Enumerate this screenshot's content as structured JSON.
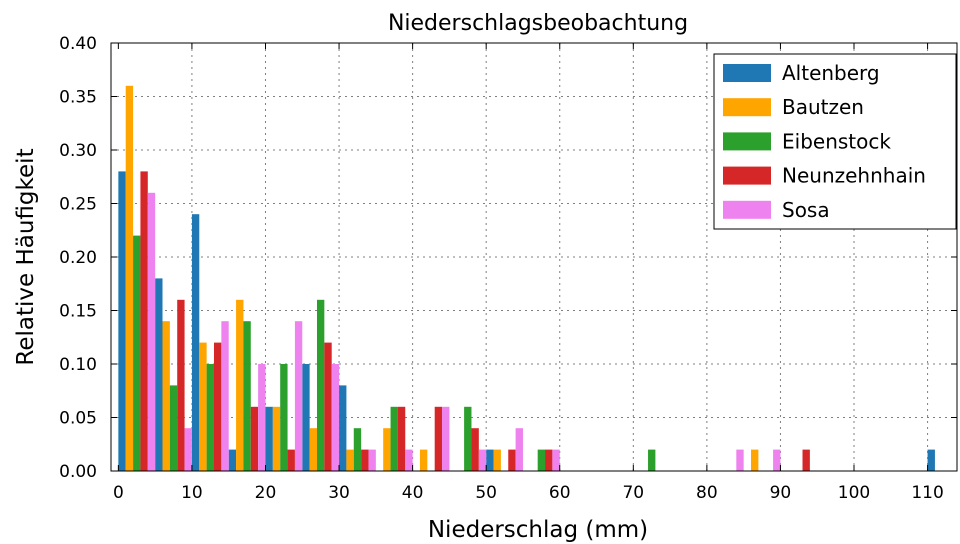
{
  "chart_data": {
    "type": "bar",
    "title": "Niederschlagsbeobachtung",
    "xlabel": "Niederschlag (mm)",
    "ylabel": "Relative Häufigkeit",
    "xlim": [
      -1,
      114
    ],
    "ylim": [
      0,
      0.4
    ],
    "xticks": [
      0,
      10,
      20,
      30,
      40,
      50,
      60,
      70,
      80,
      90,
      100,
      110
    ],
    "yticks": [
      0.0,
      0.05,
      0.1,
      0.15,
      0.2,
      0.25,
      0.3,
      0.35,
      0.4
    ],
    "ytick_labels": [
      "0.00",
      "0.05",
      "0.10",
      "0.15",
      "0.20",
      "0.25",
      "0.30",
      "0.35",
      "0.40"
    ],
    "bin_width": 5,
    "bin_starts": [
      0,
      5,
      10,
      15,
      20,
      25,
      30,
      35,
      40,
      45,
      50,
      55,
      70,
      75,
      80,
      85,
      90,
      105,
      110
    ],
    "grid": true,
    "legend_position": "top-right",
    "series": [
      {
        "name": "Altenberg",
        "color": "#1f77b4",
        "values": [
          0.28,
          0.18,
          0.24,
          0.02,
          0.06,
          0.1,
          0.08,
          0,
          0,
          0,
          0.02,
          0,
          0,
          0,
          0,
          0,
          0,
          0,
          0.02
        ]
      },
      {
        "name": "Bautzen",
        "color": "#ffa500",
        "values": [
          0.36,
          0.14,
          0.12,
          0.16,
          0.06,
          0.04,
          0.02,
          0.04,
          0.02,
          0,
          0.02,
          0,
          0,
          0,
          0,
          0.02,
          0,
          0,
          0
        ]
      },
      {
        "name": "Eibenstock",
        "color": "#2ca02c",
        "values": [
          0.22,
          0.08,
          0.1,
          0.14,
          0.1,
          0.16,
          0.04,
          0.06,
          0,
          0.06,
          0,
          0.02,
          0.02,
          0,
          0,
          0,
          0,
          0,
          0
        ]
      },
      {
        "name": "Neunzehnhain",
        "color": "#d62728",
        "values": [
          0.28,
          0.16,
          0.12,
          0.06,
          0.02,
          0.12,
          0.02,
          0.06,
          0.06,
          0.04,
          0.02,
          0.02,
          0,
          0,
          0,
          0,
          0.02,
          0,
          0
        ]
      },
      {
        "name": "Sosa",
        "color": "#ee82ee",
        "values": [
          0.26,
          0.04,
          0.14,
          0.1,
          0.14,
          0.1,
          0.02,
          0.02,
          0.06,
          0.02,
          0.04,
          0.02,
          0,
          0,
          0.02,
          0.02,
          0,
          0,
          0
        ]
      }
    ]
  }
}
